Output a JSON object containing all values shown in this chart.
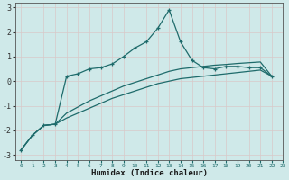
{
  "xlabel": "Humidex (Indice chaleur)",
  "background_color": "#cfe9e9",
  "grid_color": "#b8d8d8",
  "line_color": "#1e6b6b",
  "xlim": [
    -0.5,
    23
  ],
  "ylim": [
    -3.2,
    3.2
  ],
  "xticks": [
    0,
    1,
    2,
    3,
    4,
    5,
    6,
    7,
    8,
    9,
    10,
    11,
    12,
    13,
    14,
    15,
    16,
    17,
    18,
    19,
    20,
    21,
    22,
    23
  ],
  "yticks": [
    -3,
    -2,
    -1,
    0,
    1,
    2,
    3
  ],
  "line1_x": [
    0,
    1,
    2,
    3,
    4,
    5,
    6,
    7,
    8,
    9,
    10,
    11,
    12,
    13,
    14,
    15,
    16,
    17,
    18,
    19,
    20,
    21,
    22
  ],
  "line1_y": [
    -2.8,
    -2.2,
    -1.8,
    -1.75,
    -1.5,
    -1.3,
    -1.1,
    -0.9,
    -0.7,
    -0.55,
    -0.4,
    -0.25,
    -0.1,
    0.0,
    0.1,
    0.15,
    0.2,
    0.25,
    0.3,
    0.35,
    0.4,
    0.45,
    0.2
  ],
  "line2_x": [
    0,
    1,
    2,
    3,
    4,
    5,
    6,
    7,
    8,
    9,
    10,
    11,
    12,
    13,
    14,
    15,
    16,
    17,
    18,
    19,
    20,
    21,
    22
  ],
  "line2_y": [
    -2.8,
    -2.2,
    -1.8,
    -1.75,
    -1.3,
    -1.05,
    -0.8,
    -0.6,
    -0.4,
    -0.2,
    -0.05,
    0.1,
    0.25,
    0.4,
    0.5,
    0.55,
    0.6,
    0.65,
    0.68,
    0.72,
    0.75,
    0.78,
    0.2
  ],
  "line3_x": [
    0,
    1,
    2,
    3,
    4,
    5,
    6,
    7,
    8,
    9,
    10,
    11,
    12,
    13,
    14,
    15,
    16,
    17,
    18,
    19,
    20,
    21,
    22
  ],
  "line3_y": [
    -2.8,
    -2.2,
    -1.8,
    -1.75,
    0.2,
    0.3,
    0.5,
    0.55,
    0.7,
    1.0,
    1.35,
    1.6,
    2.15,
    2.9,
    1.6,
    0.85,
    0.55,
    0.5,
    0.6,
    0.6,
    0.55,
    0.55,
    0.2
  ]
}
